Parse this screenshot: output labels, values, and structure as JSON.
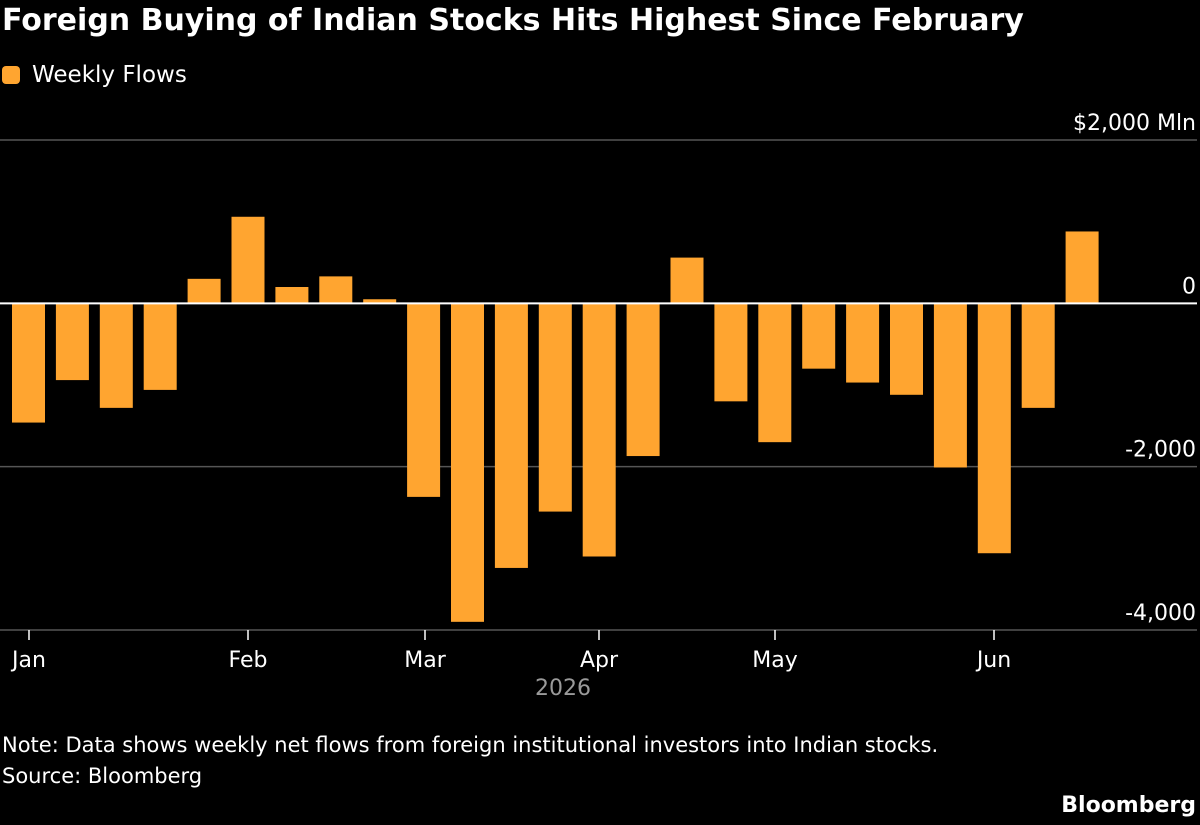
{
  "chart_data": {
    "type": "bar",
    "title": "Foreign Buying of Indian Stocks Hits Highest Since February",
    "series": [
      {
        "name": "Weekly Flows",
        "color": "#FFA530",
        "values": [
          -1460,
          -940,
          -1280,
          -1060,
          300,
          1060,
          200,
          330,
          50,
          -2370,
          -3900,
          -3240,
          -2550,
          -3100,
          -1870,
          560,
          -1200,
          -1700,
          -800,
          -970,
          -1120,
          -2010,
          -3060,
          -1280,
          880
        ]
      }
    ],
    "y_tick_values": [
      2000,
      0,
      -2000,
      -4000
    ],
    "y_tick_labels": [
      "$2,000 Mln",
      "0",
      "-2,000",
      "-4,000"
    ],
    "ylim": [
      -4000,
      2000
    ],
    "x_month_labels": [
      "Jan",
      "Feb",
      "Mar",
      "Apr",
      "May",
      "Jun"
    ],
    "x_year_label": "2026",
    "legend_position": "top-left",
    "grid": true,
    "colors": {
      "background": "#000000",
      "bar": "#FFA530",
      "grid": "#555555",
      "text": "#ffffff",
      "year_label": "#9a9a9a"
    }
  },
  "footer": {
    "note": "Note: Data shows weekly net flows from foreign institutional investors into Indian stocks.",
    "source": "Source: Bloomberg",
    "brand": "Bloomberg"
  }
}
